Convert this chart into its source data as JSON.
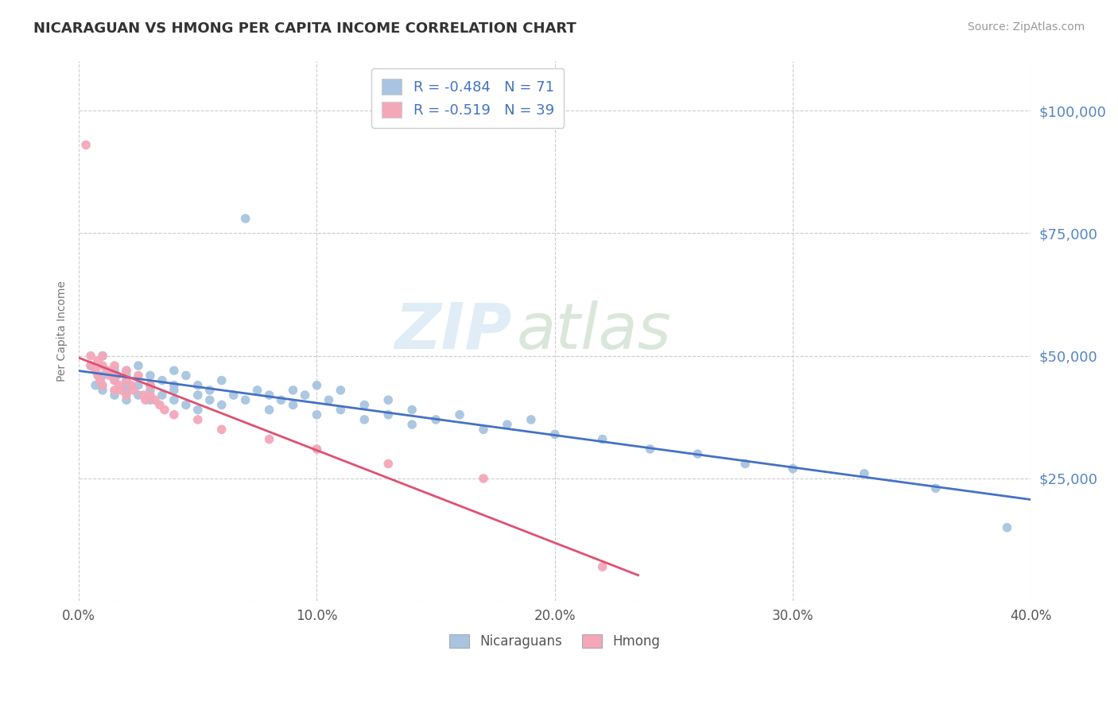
{
  "title": "NICARAGUAN VS HMONG PER CAPITA INCOME CORRELATION CHART",
  "source": "Source: ZipAtlas.com",
  "ylabel_label": "Per Capita Income",
  "xlim": [
    0.0,
    0.4
  ],
  "ylim": [
    0,
    110000
  ],
  "yticks": [
    0,
    25000,
    50000,
    75000,
    100000
  ],
  "ytick_labels": [
    "",
    "$25,000",
    "$50,000",
    "$75,000",
    "$100,000"
  ],
  "xticks": [
    0.0,
    0.1,
    0.2,
    0.3,
    0.4
  ],
  "xtick_labels": [
    "0.0%",
    "10.0%",
    "20.0%",
    "30.0%",
    "40.0%"
  ],
  "nicaraguan_color": "#a8c4e0",
  "hmong_color": "#f4a7b9",
  "trend_nicaraguan_color": "#4472c4",
  "trend_hmong_color": "#e05070",
  "r_nicaraguan": -0.484,
  "n_nicaraguan": 71,
  "r_hmong": -0.519,
  "n_hmong": 39,
  "watermark_zip": "ZIP",
  "watermark_atlas": "atlas",
  "title_color": "#333333",
  "axis_label_color": "#777777",
  "ytick_color": "#5585c5",
  "xtick_color": "#555555",
  "grid_color": "#cccccc",
  "background_color": "#ffffff",
  "nicaraguan_x": [
    0.005,
    0.007,
    0.01,
    0.01,
    0.01,
    0.015,
    0.015,
    0.015,
    0.02,
    0.02,
    0.02,
    0.02,
    0.02,
    0.02,
    0.025,
    0.025,
    0.025,
    0.03,
    0.03,
    0.03,
    0.03,
    0.035,
    0.035,
    0.04,
    0.04,
    0.04,
    0.04,
    0.045,
    0.045,
    0.05,
    0.05,
    0.05,
    0.055,
    0.055,
    0.06,
    0.06,
    0.065,
    0.07,
    0.07,
    0.075,
    0.08,
    0.08,
    0.085,
    0.09,
    0.09,
    0.095,
    0.1,
    0.1,
    0.105,
    0.11,
    0.11,
    0.12,
    0.12,
    0.13,
    0.13,
    0.14,
    0.14,
    0.15,
    0.16,
    0.17,
    0.18,
    0.19,
    0.2,
    0.22,
    0.24,
    0.26,
    0.28,
    0.3,
    0.33,
    0.36,
    0.39
  ],
  "nicaraguan_y": [
    48000,
    44000,
    46000,
    43000,
    50000,
    47000,
    45000,
    42000,
    46000,
    44000,
    47000,
    43000,
    45000,
    41000,
    48000,
    44000,
    42000,
    46000,
    43000,
    44000,
    41000,
    45000,
    42000,
    44000,
    47000,
    41000,
    43000,
    46000,
    40000,
    44000,
    42000,
    39000,
    43000,
    41000,
    45000,
    40000,
    42000,
    78000,
    41000,
    43000,
    42000,
    39000,
    41000,
    43000,
    40000,
    42000,
    44000,
    38000,
    41000,
    43000,
    39000,
    40000,
    37000,
    41000,
    38000,
    39000,
    36000,
    37000,
    38000,
    35000,
    36000,
    37000,
    34000,
    33000,
    31000,
    30000,
    28000,
    27000,
    26000,
    23000,
    15000
  ],
  "hmong_x": [
    0.003,
    0.005,
    0.005,
    0.007,
    0.008,
    0.008,
    0.009,
    0.01,
    0.01,
    0.01,
    0.012,
    0.013,
    0.015,
    0.015,
    0.015,
    0.016,
    0.017,
    0.018,
    0.02,
    0.02,
    0.02,
    0.022,
    0.023,
    0.025,
    0.027,
    0.028,
    0.03,
    0.03,
    0.032,
    0.034,
    0.036,
    0.04,
    0.05,
    0.06,
    0.08,
    0.1,
    0.13,
    0.17,
    0.22
  ],
  "hmong_y": [
    93000,
    50000,
    48000,
    47000,
    49000,
    46000,
    45000,
    50000,
    48000,
    44000,
    47000,
    46000,
    48000,
    45000,
    43000,
    46000,
    44000,
    43000,
    47000,
    45000,
    42000,
    44000,
    43000,
    46000,
    42000,
    41000,
    44000,
    42000,
    41000,
    40000,
    39000,
    38000,
    37000,
    35000,
    33000,
    31000,
    28000,
    25000,
    7000
  ]
}
